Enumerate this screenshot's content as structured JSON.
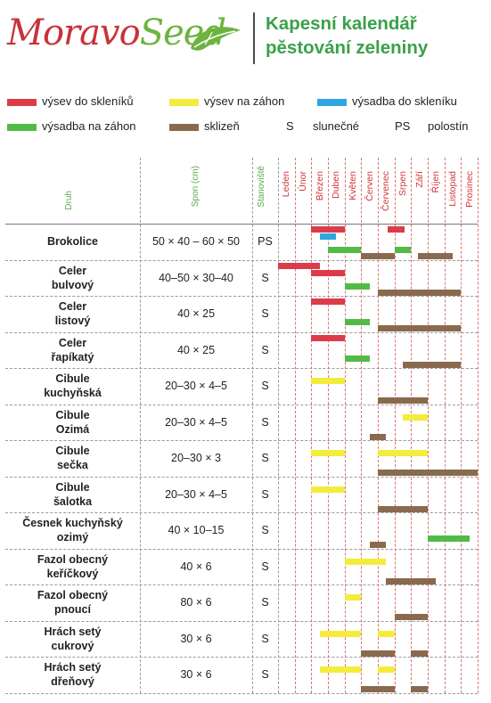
{
  "header": {
    "logo_part1": "Moravo",
    "logo_part2": "Seed",
    "title_line1": "Kapesní kalendář",
    "title_line2": "pěstování zeleniny"
  },
  "colors": {
    "vysev_skleniku": "#dc3b4a",
    "vysev_zahon": "#f4ec3a",
    "vysadba_skleniku": "#2ea6e0",
    "vysadba_zahon": "#52bb47",
    "sklizen": "#8a6a4e"
  },
  "legend": {
    "vysev_skleniku": "výsev do skleníků",
    "vysev_zahon": "výsev na záhon",
    "vysadba_skleniku": "výsadba do skleníku",
    "vysadba_zahon": "výsadba na záhon",
    "sklizen": "sklizeň",
    "s_code": "S",
    "s_label": "slunečné",
    "ps_code": "PS",
    "ps_label": "polostín"
  },
  "columns": {
    "druh": "Druh",
    "spon": "Spon (cm)",
    "stanoviste": "Stanoviště",
    "months": [
      "Leden",
      "Únor",
      "Březen",
      "Duben",
      "Květen",
      "Červen",
      "Červenec",
      "Srpen",
      "Září",
      "Říjen",
      "Listopad",
      "Prosinec"
    ]
  },
  "rows": [
    {
      "line1": "Brokolice",
      "line2": "",
      "spon": "50 × 40 – 60 × 50",
      "st": "PS",
      "bars": [
        {
          "t": "vysev_skleniku",
          "s": 2.0,
          "e": 4.0,
          "l": 0
        },
        {
          "t": "vysev_skleniku",
          "s": 6.6,
          "e": 7.6,
          "l": 0
        },
        {
          "t": "vysadba_skleniku",
          "s": 2.5,
          "e": 3.5,
          "l": 1
        },
        {
          "t": "vysadba_zahon",
          "s": 3.0,
          "e": 5.0,
          "l": 2
        },
        {
          "t": "vysadba_zahon",
          "s": 7.0,
          "e": 8.0,
          "l": 2
        },
        {
          "t": "sklizen",
          "s": 5.0,
          "e": 7.0,
          "l": 3
        },
        {
          "t": "sklizen",
          "s": 8.4,
          "e": 10.5,
          "l": 3
        }
      ]
    },
    {
      "line1": "Celer",
      "line2": "bulvový",
      "spon": "40–50 × 30–40",
      "st": "S",
      "bars": [
        {
          "t": "vysev_skleniku",
          "s": 0.0,
          "e": 2.5,
          "l": 0
        },
        {
          "t": "vysev_skleniku",
          "s": 2.0,
          "e": 4.0,
          "l": 1
        },
        {
          "t": "vysadba_zahon",
          "s": 4.0,
          "e": 5.5,
          "l": 2
        },
        {
          "t": "sklizen",
          "s": 6.0,
          "e": 11.0,
          "l": 3
        }
      ]
    },
    {
      "line1": "Celer",
      "line2": "listový",
      "spon": "40 × 25",
      "st": "S",
      "bars": [
        {
          "t": "vysev_skleniku",
          "s": 2.0,
          "e": 4.0,
          "l": 0
        },
        {
          "t": "vysadba_zahon",
          "s": 4.0,
          "e": 5.5,
          "l": 2
        },
        {
          "t": "sklizen",
          "s": 6.0,
          "e": 11.0,
          "l": 3
        }
      ]
    },
    {
      "line1": "Celer",
      "line2": "řapíkatý",
      "spon": "40 × 25",
      "st": "S",
      "bars": [
        {
          "t": "vysev_skleniku",
          "s": 2.0,
          "e": 4.0,
          "l": 0
        },
        {
          "t": "vysadba_zahon",
          "s": 4.0,
          "e": 5.5,
          "l": 2
        },
        {
          "t": "sklizen",
          "s": 7.5,
          "e": 11.0,
          "l": 3
        }
      ]
    },
    {
      "line1": "Cibule",
      "line2": "kuchyňská",
      "spon": "20–30 × 4–5",
      "st": "S",
      "bars": [
        {
          "t": "vysev_zahon",
          "s": 2.0,
          "e": 4.0,
          "l": 1
        },
        {
          "t": "sklizen",
          "s": 6.0,
          "e": 9.0,
          "l": 3
        }
      ]
    },
    {
      "line1": "Cibule",
      "line2": "Ozimá",
      "spon": "20–30 × 4–5",
      "st": "S",
      "bars": [
        {
          "t": "vysev_zahon",
          "s": 7.5,
          "e": 9.0,
          "l": 1
        },
        {
          "t": "sklizen",
          "s": 5.5,
          "e": 6.5,
          "l": 3
        }
      ]
    },
    {
      "line1": "Cibule",
      "line2": "sečka",
      "spon": "20–30 × 3",
      "st": "S",
      "bars": [
        {
          "t": "vysev_zahon",
          "s": 2.0,
          "e": 4.0,
          "l": 1
        },
        {
          "t": "vysev_zahon",
          "s": 6.0,
          "e": 9.0,
          "l": 1
        },
        {
          "t": "sklizen",
          "s": 6.0,
          "e": 12.0,
          "l": 3
        }
      ]
    },
    {
      "line1": "Cibule",
      "line2": "šalotka",
      "spon": "20–30 × 4–5",
      "st": "S",
      "bars": [
        {
          "t": "vysev_zahon",
          "s": 2.0,
          "e": 4.0,
          "l": 1
        },
        {
          "t": "sklizen",
          "s": 6.0,
          "e": 9.0,
          "l": 3
        }
      ]
    },
    {
      "line1": "Česnek kuchyňský",
      "line2": "ozimý",
      "spon": "40 × 10–15",
      "st": "S",
      "bars": [
        {
          "t": "vysadba_zahon",
          "s": 9.0,
          "e": 11.5,
          "l": 2
        },
        {
          "t": "sklizen",
          "s": 5.5,
          "e": 6.5,
          "l": 3
        }
      ]
    },
    {
      "line1": "Fazol obecný",
      "line2": "keříčkový",
      "spon": "40 × 6",
      "st": "S",
      "bars": [
        {
          "t": "vysev_zahon",
          "s": 4.0,
          "e": 6.5,
          "l": 1
        },
        {
          "t": "sklizen",
          "s": 6.5,
          "e": 9.5,
          "l": 3
        }
      ]
    },
    {
      "line1": "Fazol obecný",
      "line2": "pnoucí",
      "spon": "80 × 6",
      "st": "S",
      "bars": [
        {
          "t": "vysev_zahon",
          "s": 4.0,
          "e": 5.0,
          "l": 1
        },
        {
          "t": "sklizen",
          "s": 7.0,
          "e": 9.0,
          "l": 3
        }
      ]
    },
    {
      "line1": "Hrách setý",
      "line2": "cukrový",
      "spon": "30 × 6",
      "st": "S",
      "bars": [
        {
          "t": "vysev_zahon",
          "s": 2.5,
          "e": 5.0,
          "l": 1
        },
        {
          "t": "vysev_zahon",
          "s": 6.0,
          "e": 7.0,
          "l": 1
        },
        {
          "t": "sklizen",
          "s": 5.0,
          "e": 7.0,
          "l": 3
        },
        {
          "t": "sklizen",
          "s": 8.0,
          "e": 9.0,
          "l": 3
        }
      ]
    },
    {
      "line1": "Hrách setý",
      "line2": "dřeňový",
      "spon": "30 × 6",
      "st": "S",
      "bars": [
        {
          "t": "vysev_zahon",
          "s": 2.5,
          "e": 5.0,
          "l": 1
        },
        {
          "t": "vysev_zahon",
          "s": 6.0,
          "e": 7.0,
          "l": 1
        },
        {
          "t": "sklizen",
          "s": 5.0,
          "e": 7.0,
          "l": 3
        },
        {
          "t": "sklizen",
          "s": 8.0,
          "e": 9.0,
          "l": 3
        }
      ]
    }
  ]
}
